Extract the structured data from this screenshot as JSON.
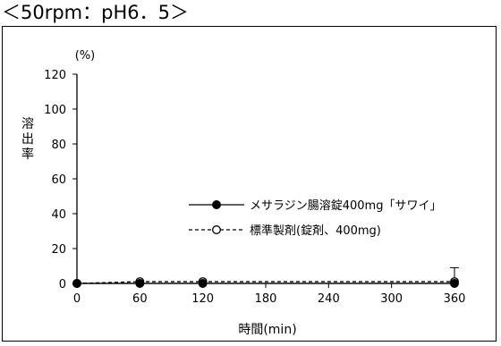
{
  "heading": "＜50rpm：pH6．5＞",
  "chart_data": {
    "type": "line",
    "title": "",
    "xlabel": "時間(min)",
    "ylabel": "溶出率",
    "y_unit": "(%)",
    "xlim": [
      0,
      360
    ],
    "ylim": [
      0,
      120
    ],
    "x_ticks": [
      0,
      60,
      120,
      180,
      240,
      300,
      360
    ],
    "y_ticks": [
      0,
      20,
      40,
      60,
      80,
      100,
      120
    ],
    "grid": false,
    "legend_position": "center-right",
    "x": [
      0,
      60,
      120,
      360
    ],
    "series": [
      {
        "name": "メサラジン腸溶錠400mg「サワイ」",
        "values": [
          0,
          0,
          0,
          0
        ],
        "line_style": "solid",
        "marker": "filled-circle",
        "color": "#000000"
      },
      {
        "name": "標準製剤(錠剤、400mg)",
        "values": [
          0,
          1,
          1,
          1
        ],
        "error_upper": [
          0,
          0,
          0,
          8
        ],
        "line_style": "dashed",
        "marker": "open-circle",
        "color": "#000000"
      }
    ]
  }
}
